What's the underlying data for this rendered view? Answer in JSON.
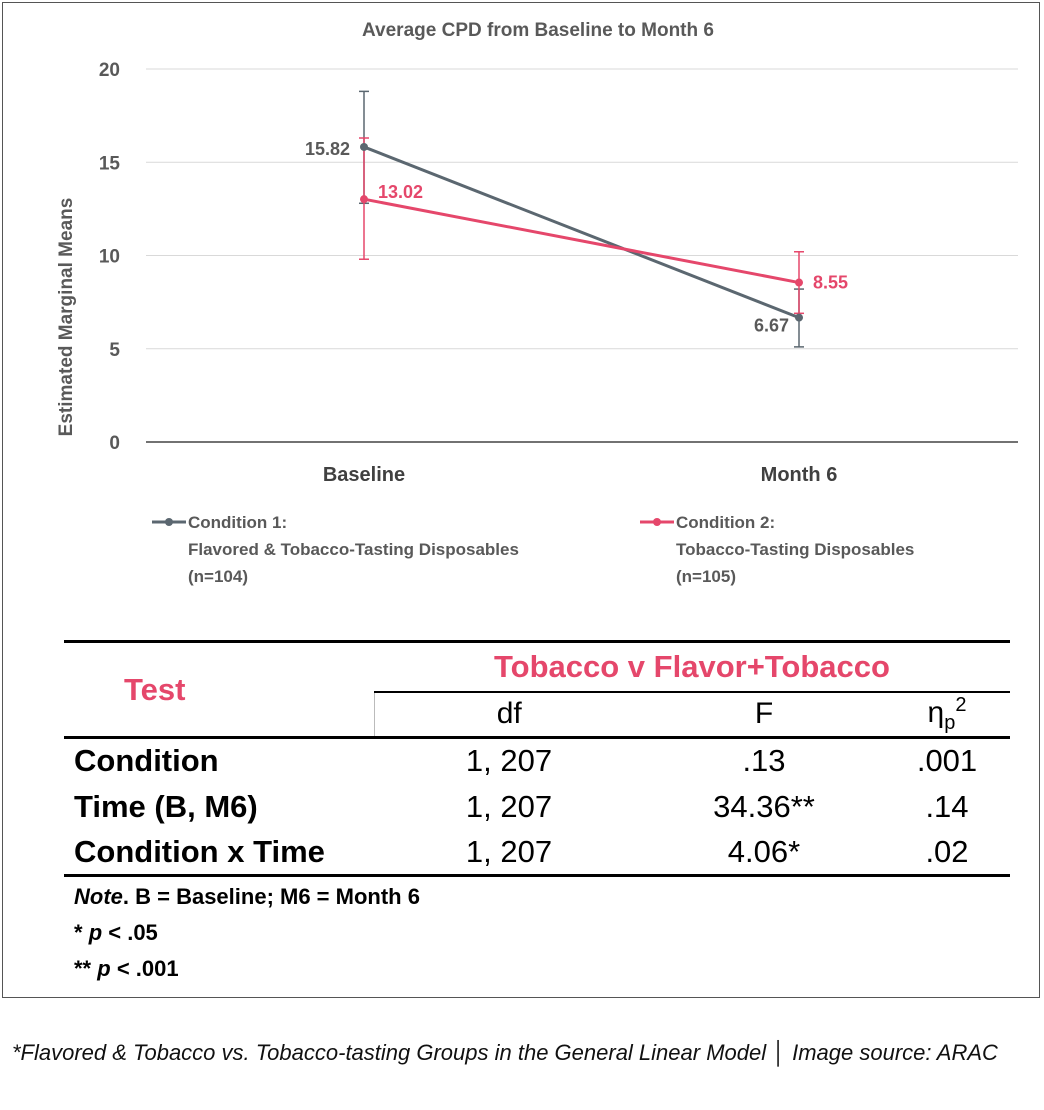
{
  "chart_data": {
    "type": "line",
    "title": "Average CPD from Baseline to Month 6",
    "xlabel": "",
    "ylabel": "Estimated Marginal Means",
    "categories": [
      "Baseline",
      "Month 6"
    ],
    "ylim": [
      0,
      20
    ],
    "yticks": [
      0,
      5,
      10,
      15,
      20
    ],
    "ytick_labels": [
      "0",
      "5",
      "10",
      "15",
      "20"
    ],
    "grid": true,
    "legend_position": "bottom",
    "series": [
      {
        "name": "Condition 1: Flavored & Tobacco-Tasting Disposables (n=104)",
        "legend_lines": [
          "Condition 1:",
          "Flavored & Tobacco-Tasting Disposables",
          "(n=104)"
        ],
        "values": [
          15.82,
          6.67
        ],
        "labels": [
          "15.82",
          "6.67"
        ],
        "error_low": [
          12.8,
          5.1
        ],
        "error_high": [
          18.8,
          8.2
        ],
        "color": "#5b6770"
      },
      {
        "name": "Condition 2: Tobacco-Tasting Disposables (n=105)",
        "legend_lines": [
          "Condition 2:",
          "Tobacco-Tasting Disposables",
          "(n=105)"
        ],
        "values": [
          13.02,
          8.55
        ],
        "labels": [
          "13.02",
          "8.55"
        ],
        "error_low": [
          9.8,
          6.9
        ],
        "error_high": [
          16.3,
          10.2
        ],
        "color": "#e5476b"
      }
    ]
  },
  "table": {
    "test_header": "Test",
    "group_header": "Tobacco v Flavor+Tobacco",
    "col_df": "df",
    "col_f": "F",
    "col_eta": "η",
    "col_eta_sub": "p",
    "col_eta_sup": "2",
    "rows": [
      {
        "test": "Condition",
        "df": "1, 207",
        "f": ".13",
        "eta": ".001"
      },
      {
        "test": "Time (B, M6)",
        "df": "1, 207",
        "f": "34.36**",
        "eta": ".14"
      },
      {
        "test": "Condition x Time",
        "df": "1, 207",
        "f": "4.06*",
        "eta": ".02"
      }
    ],
    "note_label": "Note",
    "note_text": ". B = Baseline; M6 = Month 6",
    "sig1_stars": "* ",
    "sig1_p": "p",
    "sig1_rest": " < .05",
    "sig2_stars": "** ",
    "sig2_p": "p",
    "sig2_rest": " < .001",
    "accent_color": "#e5476b"
  },
  "caption": "*Flavored & Tobacco vs. Tobacco-tasting Groups in the General Linear Model │ Image source: ARAC"
}
